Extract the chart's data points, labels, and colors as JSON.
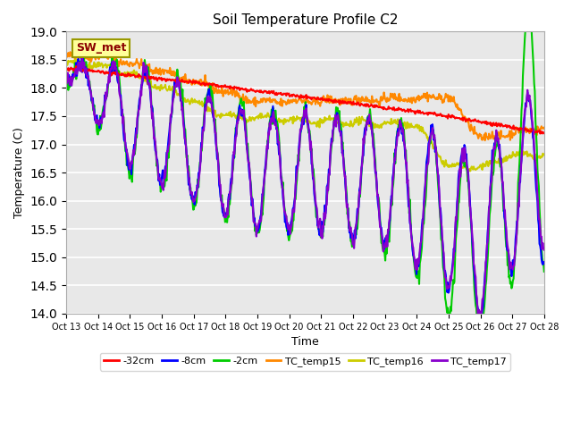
{
  "title": "Soil Temperature Profile C2",
  "xlabel": "Time",
  "ylabel": "Temperature (C)",
  "ylim": [
    14.0,
    19.0
  ],
  "yticks": [
    14.0,
    14.5,
    15.0,
    15.5,
    16.0,
    16.5,
    17.0,
    17.5,
    18.0,
    18.5,
    19.0
  ],
  "x_labels": [
    "Oct 13",
    "Oct 14",
    "Oct 15",
    "Oct 16",
    "Oct 17",
    "Oct 18",
    "Oct 19",
    "Oct 20",
    "Oct 21",
    "Oct 22",
    "Oct 23",
    "Oct 24",
    "Oct 25",
    "Oct 26",
    "Oct 27",
    "Oct 28"
  ],
  "colors": {
    "minus32cm": "#ff0000",
    "minus8cm": "#0000ff",
    "minus2cm": "#00cc00",
    "TC_temp15": "#ff8800",
    "TC_temp16": "#cccc00",
    "TC_temp17": "#8800cc"
  },
  "line_widths": {
    "minus32cm": 1.5,
    "minus8cm": 1.5,
    "minus2cm": 1.5,
    "TC_temp15": 1.5,
    "TC_temp16": 1.5,
    "TC_temp17": 1.5
  },
  "legend_label": "SW_met",
  "legend_label_color": "#8b0000",
  "legend_box_facecolor": "#ffff99",
  "legend_box_edgecolor": "#999900",
  "bg_color": "#e8e8e8",
  "n_days": 15,
  "points_per_day": 48
}
